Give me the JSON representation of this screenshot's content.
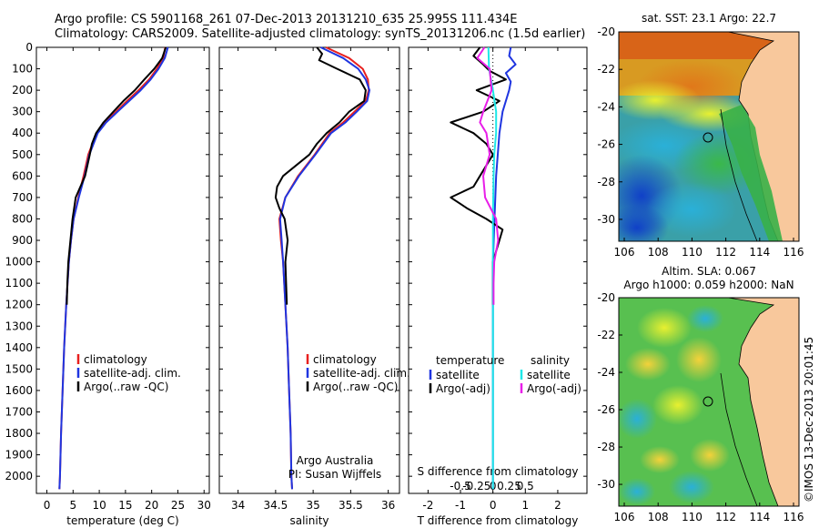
{
  "header": {
    "line1": "Argo profile: CS 5901168_261 07-Dec-2013 20131210_635 25.995S 111.434E",
    "line2": "Climatology: CARS2009. Satellite-adjusted climatology: synTS_20131206.nc (1.5d earlier)"
  },
  "colors": {
    "climatology": "#e8201e",
    "satellite": "#1f35e0",
    "argo": "#000000",
    "cyan": "#1ee8e8",
    "magenta": "#e81ee8",
    "land": "#f8c89c"
  },
  "chart_data": [
    {
      "type": "line",
      "id": "temperature",
      "xlabel": "temperature (deg C)",
      "xlim": [
        -2,
        31
      ],
      "xticks": [
        0,
        5,
        10,
        15,
        20,
        25,
        30
      ],
      "ylim": [
        2080,
        0
      ],
      "yticks": [
        0,
        100,
        200,
        300,
        400,
        500,
        600,
        700,
        800,
        900,
        1000,
        1100,
        1200,
        1300,
        1400,
        1500,
        1600,
        1700,
        1800,
        1900,
        2000
      ],
      "legend": [
        "climatology",
        "satellite-adj. clim.",
        "Argo(..raw -QC)"
      ],
      "series": [
        {
          "name": "climatology",
          "color": "#e8201e",
          "depth": [
            0,
            50,
            100,
            150,
            200,
            250,
            300,
            350,
            400,
            500,
            600,
            700,
            800,
            900,
            1000,
            1200,
            1400,
            1600,
            1800,
            2000,
            2060
          ],
          "values": [
            22.6,
            22.2,
            21.0,
            19.5,
            17.5,
            15.3,
            13.2,
            11.0,
            9.5,
            7.9,
            7.0,
            6.0,
            5.1,
            4.6,
            4.2,
            3.7,
            3.3,
            3.0,
            2.7,
            2.5,
            2.4
          ]
        },
        {
          "name": "satellite-adj. clim.",
          "color": "#1f35e0",
          "depth": [
            0,
            50,
            100,
            150,
            200,
            250,
            300,
            350,
            400,
            500,
            600,
            700,
            800,
            900,
            1000,
            1200,
            1400,
            1600,
            1800,
            2000,
            2060
          ],
          "values": [
            23.1,
            22.5,
            21.3,
            19.8,
            17.9,
            15.7,
            13.5,
            11.3,
            9.7,
            8.1,
            7.2,
            6.1,
            5.1,
            4.6,
            4.2,
            3.7,
            3.3,
            3.0,
            2.7,
            2.5,
            2.4
          ]
        },
        {
          "name": "Argo(..raw -QC)",
          "color": "#000000",
          "depth": [
            0,
            50,
            100,
            150,
            200,
            250,
            300,
            350,
            400,
            450,
            500,
            600,
            700,
            800,
            900,
            1000,
            1100,
            1200
          ],
          "values": [
            22.7,
            22.0,
            20.5,
            18.6,
            16.8,
            14.6,
            12.7,
            10.8,
            9.4,
            8.6,
            8.2,
            7.3,
            5.5,
            4.9,
            4.5,
            4.1,
            3.9,
            3.8
          ]
        }
      ]
    },
    {
      "type": "line",
      "id": "salinity",
      "xlabel": "salinity",
      "xlim": [
        33.75,
        36.15
      ],
      "xticks": [
        34,
        34.5,
        35,
        35.5,
        36
      ],
      "ylim": [
        2080,
        0
      ],
      "legend": [
        "climatology",
        "satellite-adj. clim.",
        "Argo(..raw -QC)"
      ],
      "annotation": [
        "Argo Australia",
        "PI: Susan Wijffels"
      ],
      "series": [
        {
          "name": "climatology",
          "color": "#e8201e",
          "depth": [
            0,
            50,
            100,
            150,
            200,
            250,
            300,
            350,
            400,
            500,
            600,
            700,
            800,
            900,
            1000,
            1200,
            1400,
            1600,
            1800,
            2000,
            2060
          ],
          "values": [
            35.17,
            35.48,
            35.66,
            35.73,
            35.74,
            35.7,
            35.55,
            35.4,
            35.22,
            35.02,
            34.8,
            34.63,
            34.55,
            34.57,
            34.6,
            34.63,
            34.66,
            34.68,
            34.7,
            34.71,
            34.72
          ]
        },
        {
          "name": "satellite-adj. clim.",
          "color": "#1f35e0",
          "depth": [
            0,
            50,
            100,
            150,
            200,
            250,
            300,
            350,
            400,
            500,
            600,
            700,
            800,
            900,
            1000,
            1200,
            1400,
            1600,
            1800,
            2000,
            2060
          ],
          "values": [
            35.1,
            35.4,
            35.6,
            35.7,
            35.75,
            35.72,
            35.58,
            35.43,
            35.24,
            35.03,
            34.81,
            34.63,
            34.56,
            34.58,
            34.6,
            34.63,
            34.66,
            34.68,
            34.7,
            34.71,
            34.72
          ]
        },
        {
          "name": "Argo(..raw -QC)",
          "color": "#000000",
          "depth": [
            0,
            30,
            60,
            100,
            150,
            200,
            250,
            300,
            350,
            400,
            450,
            500,
            600,
            650,
            700,
            750,
            800,
            900,
            1000,
            1100,
            1200
          ],
          "values": [
            35.05,
            35.12,
            35.08,
            35.32,
            35.62,
            35.7,
            35.68,
            35.48,
            35.35,
            35.18,
            35.05,
            34.95,
            34.6,
            34.52,
            34.5,
            34.55,
            34.62,
            34.66,
            34.63,
            34.64,
            34.65
          ]
        }
      ]
    },
    {
      "type": "line",
      "id": "difference",
      "xlabel": "T difference from climatology",
      "xlabel_top": "S difference from climatology",
      "xlim": [
        -2.6,
        2.9
      ],
      "xticks": [
        -2,
        -1,
        0,
        1,
        2
      ],
      "sticks": [
        -0.5,
        -0.25,
        0,
        0.25,
        0.5
      ],
      "stick_labels": [
        "-0.5",
        "-0.25",
        "0",
        "0.25",
        "0.5"
      ],
      "ylim": [
        2080,
        0
      ],
      "legend_left_title": "temperature",
      "legend_right_title": "salinity",
      "legend_left": [
        "satellite",
        "Argo(-adj)"
      ],
      "legend_right": [
        "satellite",
        "Argo(-adj)"
      ],
      "series": [
        {
          "name": "T satellite",
          "color": "#1f35e0",
          "depth": [
            0,
            40,
            80,
            120,
            160,
            200,
            300,
            400,
            600,
            800,
            1000,
            1500,
            2060
          ],
          "values": [
            0.55,
            0.5,
            0.7,
            0.4,
            0.55,
            0.5,
            0.3,
            0.2,
            0.1,
            0.05,
            0.0,
            0.0,
            0.0
          ]
        },
        {
          "name": "T Argo(-adj)",
          "color": "#000000",
          "depth": [
            0,
            40,
            80,
            110,
            150,
            200,
            250,
            300,
            350,
            400,
            450,
            500,
            550,
            600,
            650,
            700,
            750,
            800,
            850,
            900,
            950,
            1000,
            1100,
            1200
          ],
          "values": [
            -0.4,
            -0.6,
            -0.3,
            -0.1,
            0.4,
            -0.5,
            0.2,
            -0.3,
            -1.3,
            -0.6,
            -0.2,
            0.0,
            -0.2,
            -0.4,
            -0.6,
            -1.3,
            -0.8,
            -0.2,
            0.3,
            0.2,
            0.1,
            0.0,
            0.0,
            0.0
          ]
        },
        {
          "name": "S satellite",
          "color": "#1ee8e8",
          "depth": [
            0,
            100,
            200,
            300,
            400,
            500,
            600,
            800,
            1000,
            1500,
            2060
          ],
          "values": [
            -0.07,
            -0.06,
            0.0,
            0.05,
            0.05,
            0.02,
            0.01,
            0.0,
            0.0,
            0.0,
            0.0
          ]
        },
        {
          "name": "S Argo(-adj)",
          "color": "#e81ee8",
          "depth": [
            0,
            50,
            100,
            200,
            300,
            350,
            400,
            500,
            600,
            700,
            800,
            900,
            1000,
            1100,
            1200
          ],
          "values": [
            -0.13,
            -0.24,
            -0.05,
            -0.02,
            -0.15,
            -0.2,
            -0.1,
            -0.05,
            -0.15,
            -0.12,
            0.05,
            0.08,
            0.02,
            0.01,
            0.01
          ]
        }
      ]
    }
  ],
  "maps": {
    "sst": {
      "title": "sat. SST: 23.1 Argo: 22.7",
      "xticks": [
        "106",
        "108",
        "110",
        "112",
        "114",
        "116"
      ],
      "yticks": [
        "-20",
        "-22",
        "-24",
        "-26",
        "-28",
        "-30"
      ]
    },
    "sla": {
      "title_line1": "Altim. SLA: 0.067",
      "title_line2": "Argo h1000: 0.059 h2000: NaN",
      "xticks": [
        "106",
        "108",
        "110",
        "112",
        "114",
        "116"
      ],
      "yticks": [
        "-20",
        "-22",
        "-24",
        "-26",
        "-28",
        "-30"
      ]
    },
    "credit": "©IMOS 13-Dec-2013 20:01:45"
  }
}
